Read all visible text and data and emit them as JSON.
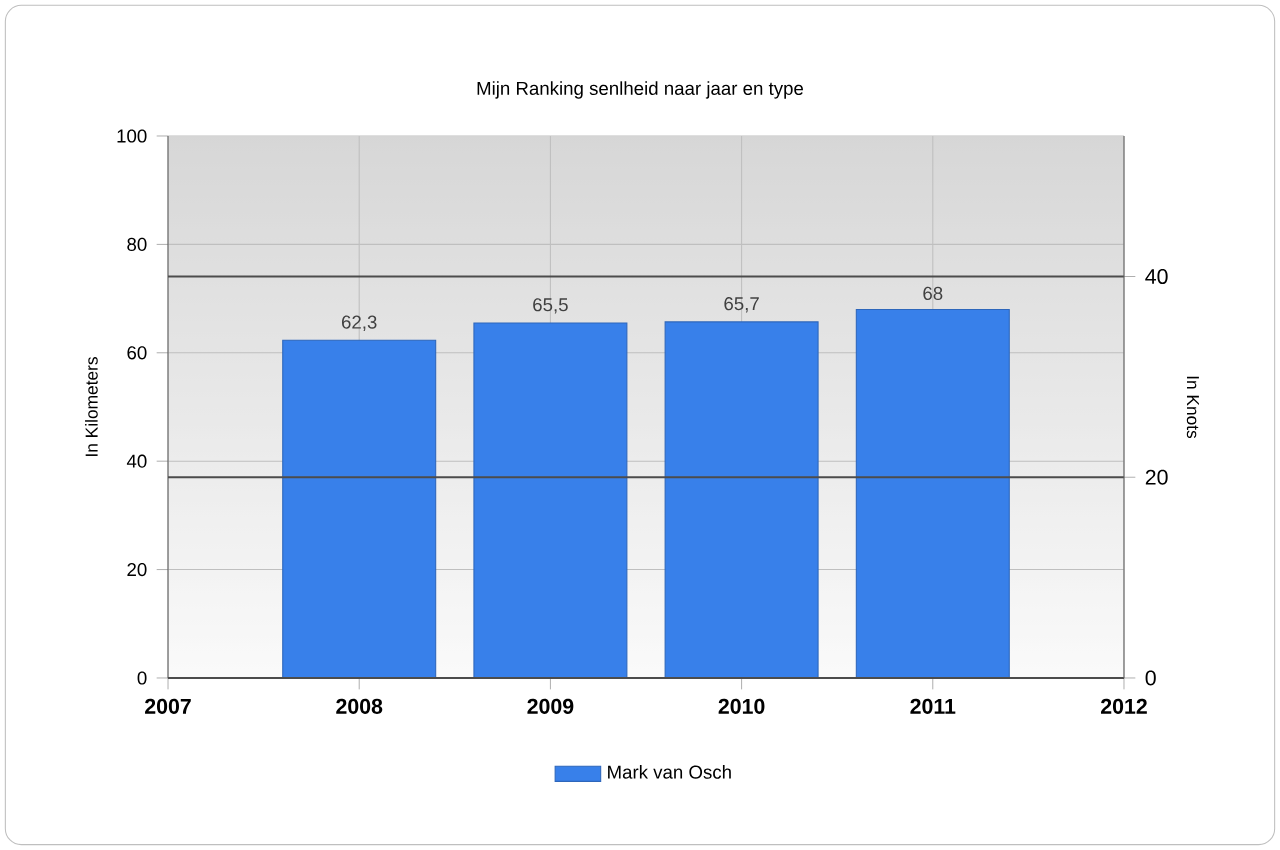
{
  "chart_data": {
    "type": "bar",
    "title": "Mijn Ranking senlheid naar jaar en type",
    "xlabel": null,
    "ylabel": "In Kilometers",
    "y2label": "In Knots",
    "x": [
      2008,
      2009,
      2010,
      2011
    ],
    "series": [
      {
        "name": "Mark van Osch",
        "color": "#3880ea",
        "values": [
          62.3,
          65.5,
          65.7,
          68
        ]
      }
    ],
    "value_labels": [
      "62,3",
      "65,5",
      "65,7",
      "68"
    ],
    "xlim": [
      2007,
      2012
    ],
    "xticks": [
      2007,
      2008,
      2009,
      2010,
      2011,
      2012
    ],
    "ylim": [
      0,
      100
    ],
    "yticks": [
      0,
      20,
      40,
      60,
      80,
      100
    ],
    "y2lim": [
      0,
      54
    ],
    "y2ticks": [
      0,
      20,
      40
    ],
    "grid": true,
    "legend": "bottom"
  }
}
